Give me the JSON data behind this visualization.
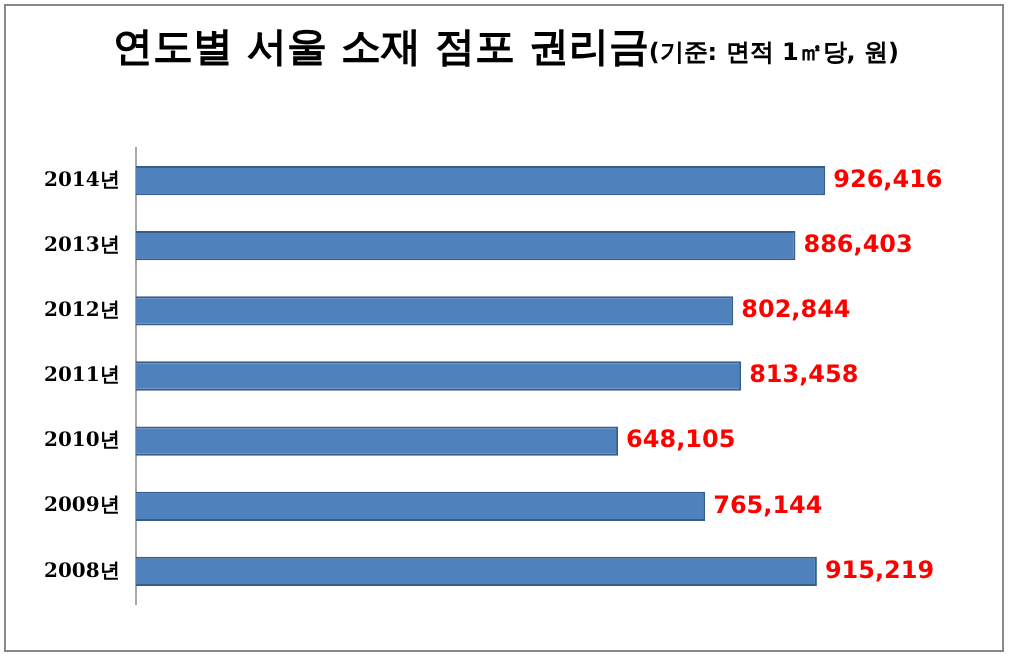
{
  "chart_data": {
    "type": "bar",
    "orientation": "horizontal",
    "title": "연도별 서울 소재 점포 권리금",
    "subtitle": "(기준: 면적 1㎡당, 원)",
    "categories": [
      "2014년",
      "2013년",
      "2012년",
      "2011년",
      "2010년",
      "2009년",
      "2008년"
    ],
    "values": [
      926416,
      886403,
      802844,
      813458,
      648105,
      765144,
      915219
    ],
    "value_labels": [
      "926,416",
      "886,403",
      "802,844",
      "813,458",
      "648,105",
      "765,144",
      "915,219"
    ],
    "color": "#4f81bd",
    "grid": false,
    "legend": false,
    "tick_labels": "y"
  }
}
